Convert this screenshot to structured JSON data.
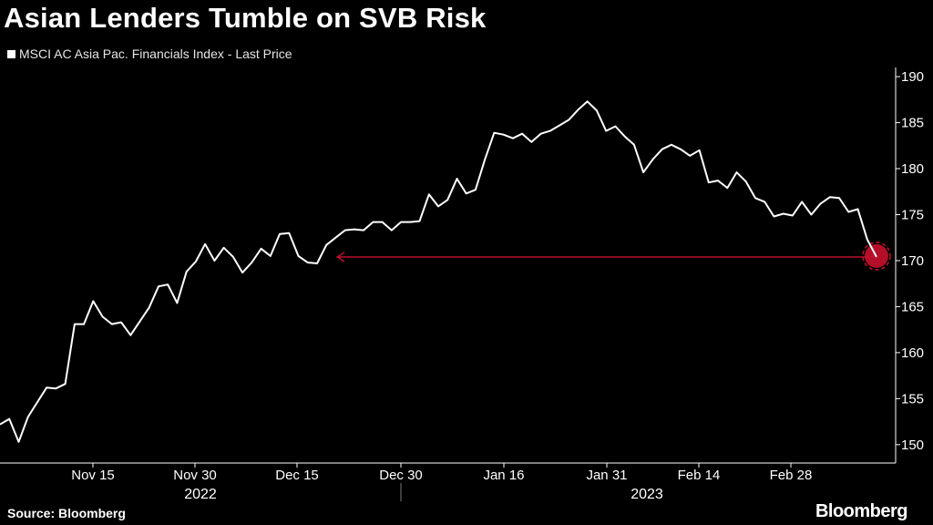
{
  "chart_data": {
    "type": "line",
    "title": "Asian Lenders Tumble on SVB Risk",
    "legend": [
      "MSCI AC Asia Pac. Financials Index - Last Price"
    ],
    "source": "Source: Bloomberg",
    "brand": "Bloomberg",
    "ylim": [
      148,
      191
    ],
    "yticks": [
      150,
      155,
      160,
      165,
      170,
      175,
      180,
      185,
      190
    ],
    "x_tick_labels": [
      "Nov 15",
      "Nov 30",
      "Dec 15",
      "Dec 30",
      "Jan 16",
      "Jan 31",
      "Feb 14",
      "Feb 28"
    ],
    "year_labels": [
      "2022",
      "2023"
    ],
    "annotation": {
      "type": "arrow",
      "value": 170.4,
      "description": "reference level back to mid-December"
    },
    "colors": {
      "line": "#ffffff",
      "annotation": "#c8102e",
      "axis": "#ffffff"
    },
    "series": [
      {
        "name": "MSCI AC Asia Pac. Financials Index - Last Price",
        "values": [
          152.2,
          152.8,
          150.3,
          153.0,
          154.6,
          156.2,
          156.1,
          156.6,
          163.1,
          163.1,
          165.6,
          163.9,
          163.1,
          163.3,
          161.9,
          163.4,
          164.9,
          167.2,
          167.4,
          165.4,
          168.8,
          169.9,
          171.8,
          170.0,
          171.4,
          170.4,
          168.7,
          169.8,
          171.3,
          170.5,
          172.9,
          173.0,
          170.5,
          169.8,
          169.7,
          171.7,
          172.5,
          173.3,
          173.4,
          173.3,
          174.2,
          174.2,
          173.3,
          174.2,
          174.2,
          174.3,
          177.2,
          175.9,
          176.6,
          178.9,
          177.3,
          177.7,
          181.0,
          183.9,
          183.7,
          183.3,
          183.8,
          182.9,
          183.8,
          184.1,
          184.7,
          185.3,
          186.4,
          187.3,
          186.3,
          184.1,
          184.6,
          183.5,
          182.6,
          179.6,
          181.0,
          182.1,
          182.6,
          182.1,
          181.4,
          182.0,
          178.5,
          178.7,
          177.9,
          179.6,
          178.6,
          176.8,
          176.4,
          174.8,
          175.1,
          174.9,
          176.4,
          175.0,
          176.2,
          176.9,
          176.8,
          175.3,
          175.6,
          172.3,
          170.4
        ]
      }
    ]
  }
}
